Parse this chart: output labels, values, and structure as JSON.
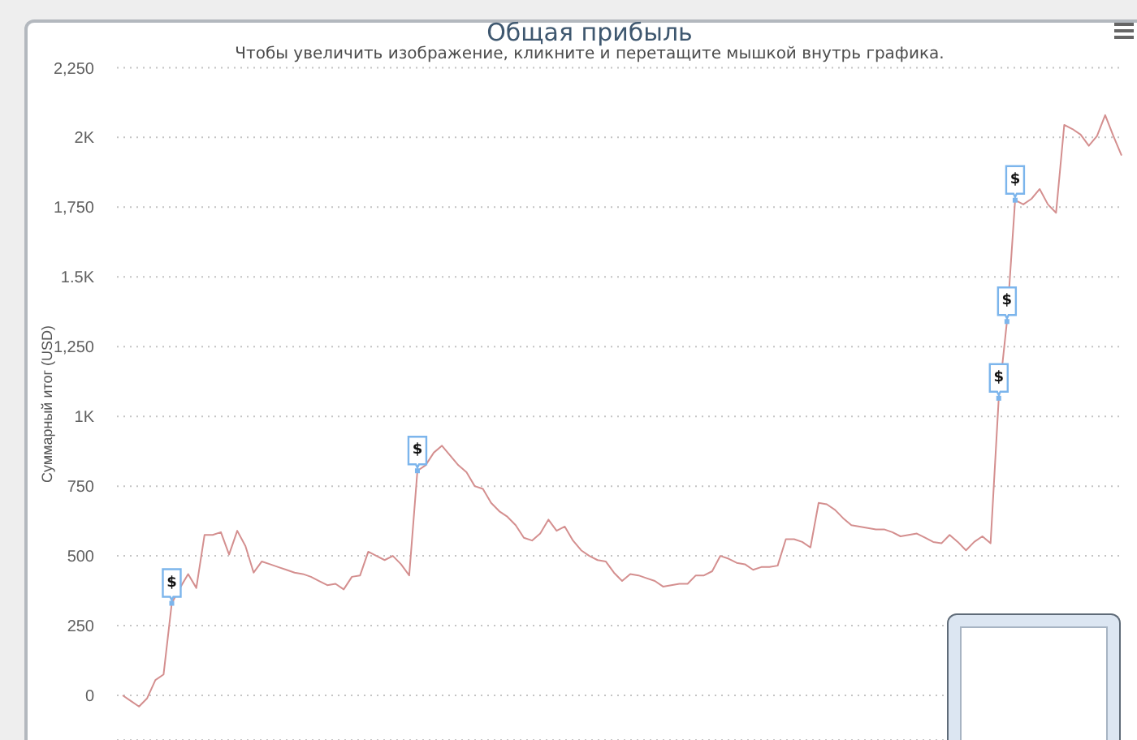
{
  "chart_data": {
    "type": "line",
    "title": "Общая прибыль",
    "subtitle": "Чтобы увеличить изображение, кликните и перетащите мышкой внутрь графика.",
    "ylabel": "Суммарный итог (USD)",
    "categories": [
      null,
      null,
      null,
      null,
      null,
      null,
      null,
      null,
      null,
      null,
      null,
      null,
      null,
      null,
      null,
      null,
      null,
      null,
      null,
      null,
      null,
      null,
      null,
      null,
      null,
      null,
      null,
      null,
      null,
      null,
      null,
      null,
      null,
      null,
      null,
      null,
      null,
      null,
      null,
      null,
      null,
      null,
      null,
      null,
      null,
      null,
      null,
      null,
      null,
      null,
      null,
      null,
      null,
      null,
      null,
      null,
      null,
      null,
      null,
      null,
      null,
      null,
      null,
      null,
      null,
      null,
      null,
      null,
      null,
      null,
      null,
      null,
      null,
      null,
      null,
      null,
      null,
      null,
      null,
      null,
      null,
      null,
      null,
      null,
      null,
      null,
      null,
      null,
      null,
      null,
      null,
      null,
      null,
      null,
      null,
      null,
      null,
      null,
      null,
      null,
      null,
      null,
      null,
      null,
      null,
      null,
      null,
      null,
      null,
      null,
      null,
      null,
      null,
      null,
      null,
      null,
      null,
      null,
      null,
      null,
      null,
      null,
      null
    ],
    "series": [
      {
        "color": "#d48f8f",
        "values": [
          0,
          -20,
          -40,
          -10,
          55,
          75,
          330,
          385,
          435,
          385,
          575,
          575,
          585,
          505,
          590,
          535,
          440,
          480,
          470,
          460,
          450,
          440,
          435,
          425,
          410,
          395,
          400,
          380,
          425,
          430,
          515,
          500,
          485,
          500,
          470,
          430,
          805,
          825,
          870,
          895,
          860,
          825,
          800,
          750,
          740,
          690,
          660,
          640,
          610,
          565,
          555,
          580,
          630,
          590,
          605,
          555,
          520,
          500,
          485,
          480,
          440,
          410,
          435,
          430,
          420,
          410,
          390,
          395,
          400,
          400,
          430,
          430,
          445,
          500,
          490,
          475,
          470,
          450,
          460,
          460,
          465,
          560,
          560,
          550,
          530,
          690,
          685,
          665,
          635,
          610,
          605,
          600,
          595,
          595,
          585,
          570,
          575,
          580,
          565,
          550,
          545,
          575,
          550,
          520,
          550,
          570,
          545,
          1065,
          1340,
          1775,
          1760,
          1780,
          1815,
          1760,
          1730,
          2045,
          2030,
          2010,
          1970,
          2005,
          2080,
          2005,
          1935
        ]
      },
      {
        "type": "scatter",
        "color": "#7cb5ec",
        "marker": "square",
        "values": [
          null,
          null,
          null,
          null,
          null,
          null,
          330,
          null,
          null,
          null,
          null,
          null,
          null,
          null,
          null,
          null,
          null,
          null,
          null,
          null,
          null,
          null,
          null,
          null,
          null,
          null,
          null,
          null,
          null,
          null,
          null,
          null,
          null,
          null,
          null,
          null,
          805,
          null,
          null,
          null,
          null,
          null,
          null,
          null,
          null,
          null,
          null,
          null,
          null,
          null,
          null,
          null,
          null,
          null,
          null,
          null,
          null,
          null,
          null,
          null,
          null,
          null,
          null,
          null,
          null,
          null,
          null,
          null,
          null,
          null,
          null,
          null,
          null,
          null,
          null,
          null,
          null,
          null,
          null,
          null,
          null,
          null,
          null,
          null,
          null,
          null,
          null,
          null,
          null,
          null,
          null,
          null,
          null,
          null,
          null,
          null,
          null,
          null,
          null,
          null,
          null,
          null,
          null,
          null,
          null,
          null,
          null,
          1065,
          1340,
          1775,
          null,
          null,
          null,
          null,
          null,
          null,
          null,
          null,
          null,
          null,
          null,
          null,
          null
        ],
        "value_labels": [
          null,
          null,
          null,
          null,
          null,
          null,
          "$",
          null,
          null,
          null,
          null,
          null,
          null,
          null,
          null,
          null,
          null,
          null,
          null,
          null,
          null,
          null,
          null,
          null,
          null,
          null,
          null,
          null,
          null,
          null,
          null,
          null,
          null,
          null,
          null,
          null,
          "$",
          null,
          null,
          null,
          null,
          null,
          null,
          null,
          null,
          null,
          null,
          null,
          null,
          null,
          null,
          null,
          null,
          null,
          null,
          null,
          null,
          null,
          null,
          null,
          null,
          null,
          null,
          null,
          null,
          null,
          null,
          null,
          null,
          null,
          null,
          null,
          null,
          null,
          null,
          null,
          null,
          null,
          null,
          null,
          null,
          null,
          null,
          null,
          null,
          null,
          null,
          null,
          null,
          null,
          null,
          null,
          null,
          null,
          null,
          null,
          null,
          null,
          null,
          null,
          null,
          null,
          null,
          null,
          null,
          null,
          null,
          "$",
          "$",
          "$",
          null,
          null,
          null,
          null,
          null,
          null,
          null,
          null,
          null,
          null,
          null,
          null,
          null
        ]
      }
    ],
    "ylim": [
      -160,
      2250
    ],
    "yticks": [
      0,
      250,
      500,
      750,
      {
        "value": 1000,
        "label": "1K"
      },
      {
        "value": 1250,
        "label": "1,250"
      },
      {
        "value": 1500,
        "label": "1.5K"
      },
      {
        "value": 1750,
        "label": "1,750"
      },
      {
        "value": 2000,
        "label": "2K"
      },
      {
        "value": 2250,
        "label": "2,250"
      }
    ],
    "grid": "y",
    "marker": "none"
  }
}
